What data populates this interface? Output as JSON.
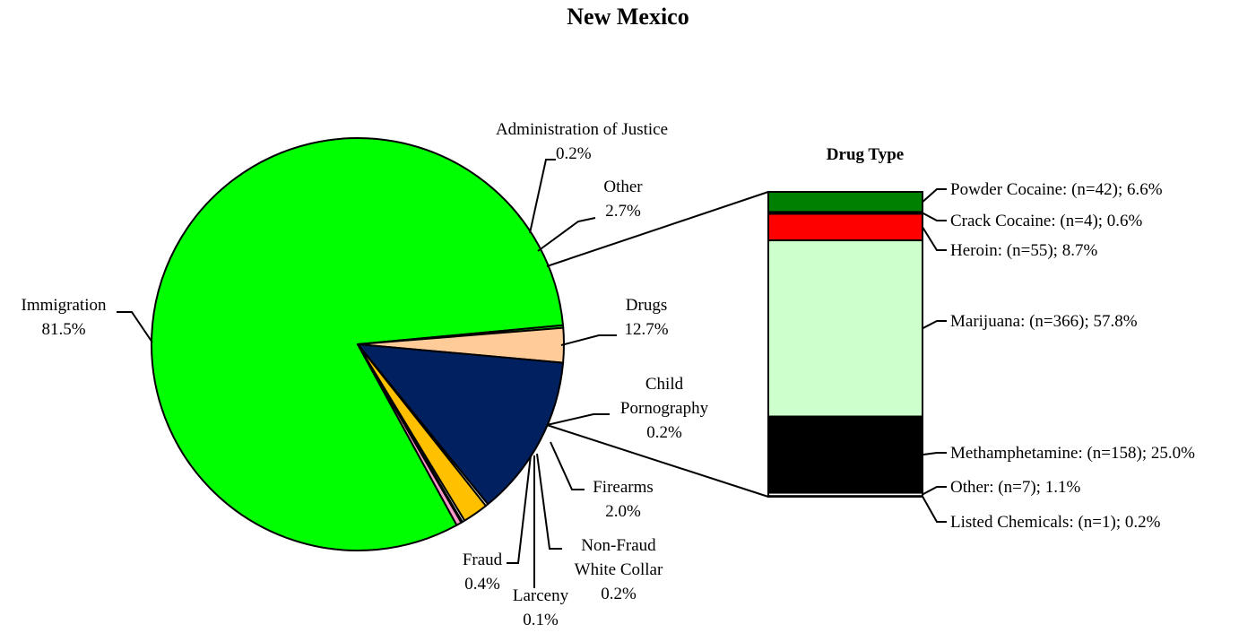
{
  "chart_data": {
    "title": "New Mexico",
    "pie": {
      "type": "pie",
      "slices": [
        {
          "name": "Immigration",
          "value": 81.5,
          "label": "81.5%",
          "color": "#00FF00"
        },
        {
          "name": "Administration of Justice",
          "value": 0.2,
          "label": "0.2%",
          "color": "#00FF00"
        },
        {
          "name": "Other",
          "value": 2.7,
          "label": "2.7%",
          "color": "#FFCC99"
        },
        {
          "name": "Drugs",
          "value": 12.7,
          "label": "12.7%",
          "color": "#002060"
        },
        {
          "name": "Child Pornography",
          "value": 0.2,
          "label": "0.2%",
          "color": "#FFFFFF"
        },
        {
          "name": "Firearms",
          "value": 2.0,
          "label": "2.0%",
          "color": "#FFC000"
        },
        {
          "name": "Non-Fraud White Collar",
          "value": 0.2,
          "label": "0.2%",
          "color": "#FFFFFF"
        },
        {
          "name": "Larceny",
          "value": 0.1,
          "label": "0.1%",
          "color": "#00FF00"
        },
        {
          "name": "Fraud",
          "value": 0.4,
          "label": "0.4%",
          "color": "#FF99CC"
        }
      ]
    },
    "drug_type": {
      "type": "stacked-bar",
      "title": "Drug Type",
      "segments": [
        {
          "name": "Powder Cocaine",
          "n": 42,
          "value": 6.6,
          "label": "Powder Cocaine:  (n=42); 6.6%",
          "color": "#008000"
        },
        {
          "name": "Crack Cocaine",
          "n": 4,
          "value": 0.6,
          "label": "Crack Cocaine:  (n=4); 0.6%",
          "color": "#000000"
        },
        {
          "name": "Heroin",
          "n": 55,
          "value": 8.7,
          "label": "Heroin:  (n=55); 8.7%",
          "color": "#FF0000"
        },
        {
          "name": "Marijuana",
          "n": 366,
          "value": 57.8,
          "label": "Marijuana:  (n=366); 57.8%",
          "color": "#CCFFCC"
        },
        {
          "name": "Methamphetamine",
          "n": 158,
          "value": 25.0,
          "label": "Methamphetamine:  (n=158); 25.0%",
          "color": "#000000"
        },
        {
          "name": "Other",
          "n": 7,
          "value": 1.1,
          "label": "Other:  (n=7); 1.1%",
          "color": "#FFFFFF"
        },
        {
          "name": "Listed Chemicals",
          "n": 1,
          "value": 0.2,
          "label": "Listed Chemicals:  (n=1); 0.2%",
          "color": "#FFFFFF"
        }
      ]
    }
  }
}
